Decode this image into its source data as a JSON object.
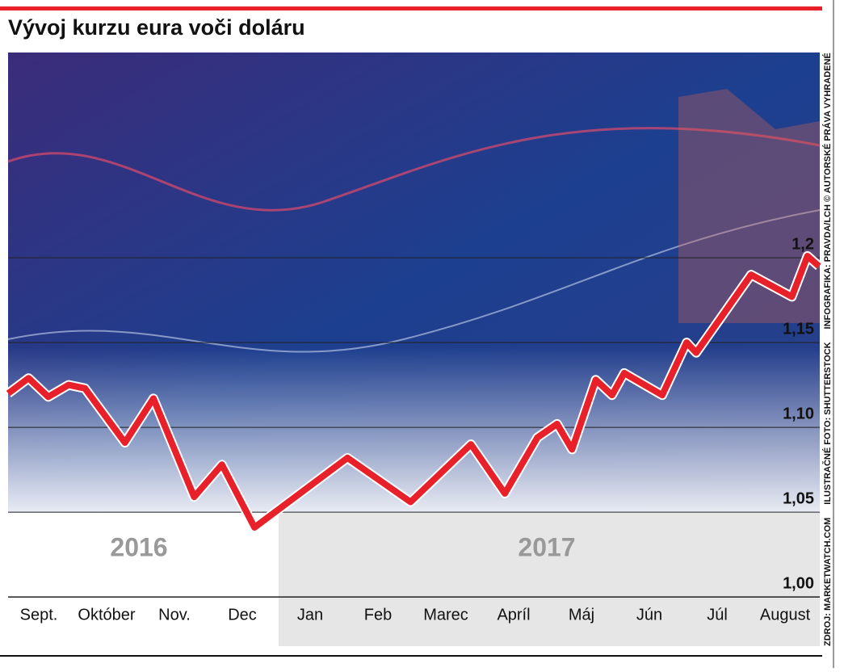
{
  "chart_data": {
    "type": "line",
    "title": "Vývoj kurzu eura voči doláru",
    "categories": [
      "Sept.",
      "Október",
      "Nov.",
      "Dec",
      "Jan",
      "Feb",
      "Marec",
      "Apríl",
      "Máj",
      "Jún",
      "Júl",
      "August"
    ],
    "annotations": [
      "2016",
      "2017"
    ],
    "credits": [
      "ZDROJ: MARKETWATCH.COM",
      "ILUSTRAČNÉ FOTO: SHUTTERSTOCK",
      "INFOGRAFIKA: PRAVDA/LCH © AUTORSKÉ PRÁVA VYHRADENÉ"
    ],
    "xlim": [
      0,
      12
    ],
    "ylim": [
      0.971,
      1.321
    ],
    "yticks": [
      {
        "value": 1.0,
        "label": "1,00"
      },
      {
        "value": 1.05,
        "label": "1,05"
      },
      {
        "value": 1.1,
        "label": "1,10"
      },
      {
        "value": 1.15,
        "label": "1,15"
      },
      {
        "value": 1.2,
        "label": "1,2"
      }
    ],
    "grid": true,
    "series": [
      {
        "color": "#e8202a",
        "x": [
          0.05,
          0.35,
          0.64,
          0.94,
          1.18,
          1.77,
          2.19,
          2.79,
          3.2,
          3.68,
          5.05,
          5.98,
          6.87,
          7.37,
          7.85,
          8.14,
          8.36,
          8.71,
          8.95,
          9.13,
          9.69,
          10.05,
          10.19,
          11.0,
          11.6,
          11.83,
          12.0
        ],
        "values": [
          1.12,
          1.129,
          1.118,
          1.125,
          1.123,
          1.091,
          1.117,
          1.059,
          1.078,
          1.041,
          1.082,
          1.056,
          1.09,
          1.061,
          1.094,
          1.102,
          1.087,
          1.128,
          1.119,
          1.132,
          1.119,
          1.15,
          1.144,
          1.19,
          1.177,
          1.201,
          1.195
        ]
      }
    ]
  }
}
